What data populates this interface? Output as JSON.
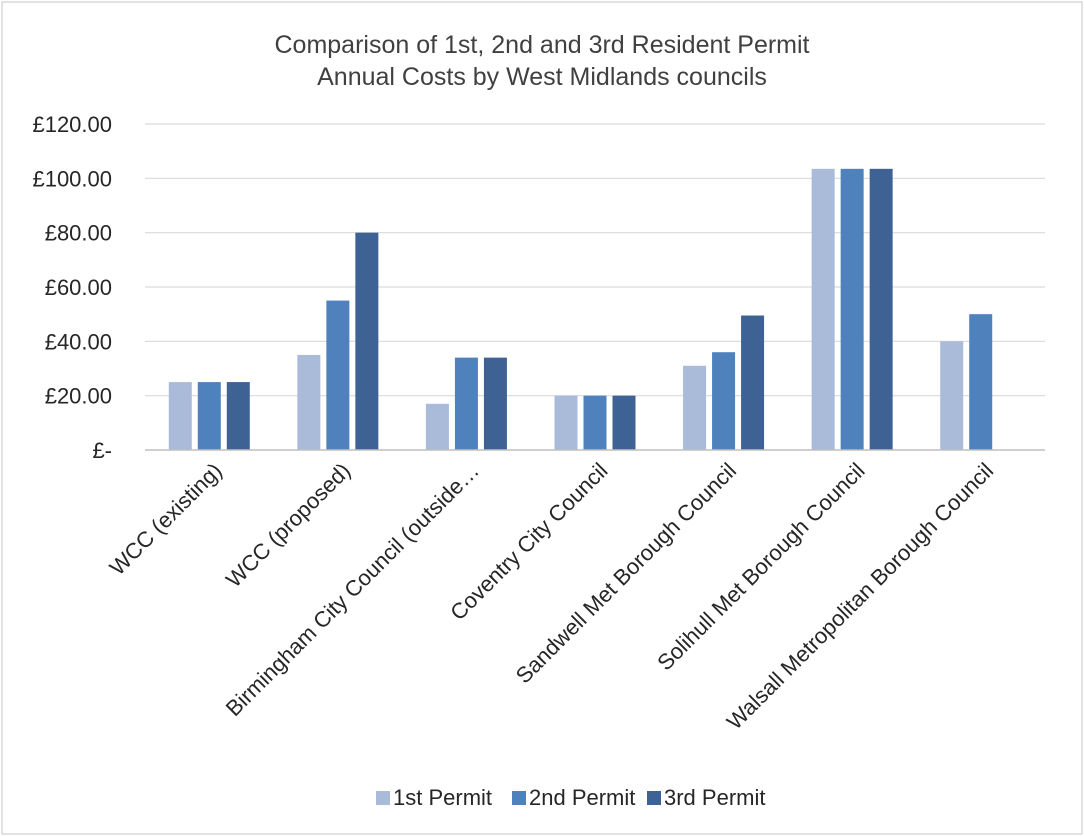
{
  "chart_data": {
    "type": "bar",
    "title": [
      "Comparison of 1st, 2nd and 3rd Resident Permit",
      "Annual Costs by West Midlands councils"
    ],
    "xlabel": "",
    "ylabel": "",
    "ylim": [
      0,
      120
    ],
    "ytick_values": [
      0,
      20,
      40,
      60,
      80,
      100,
      120
    ],
    "ytick_labels": [
      "£-",
      "£20.00",
      "£40.00",
      "£60.00",
      "£80.00",
      "£100.00",
      "£120.00"
    ],
    "grid": true,
    "legend_position": "bottom",
    "categories": [
      "WCC (existing)",
      "WCC (proposed)",
      "Birmingham City Council (outside…",
      "Coventry City Council",
      "Sandwell Met Borough Council",
      "Solihull Met Borough Council",
      "Walsall Metropolitan Borough Council"
    ],
    "series": [
      {
        "name": "1st Permit",
        "color": "#a9bbd9",
        "values": [
          25,
          35,
          17,
          20,
          31,
          103.5,
          40
        ]
      },
      {
        "name": "2nd Permit",
        "color": "#4f81bd",
        "values": [
          25,
          55,
          34,
          20,
          36,
          103.5,
          50
        ]
      },
      {
        "name": "3rd Permit",
        "color": "#3d6293",
        "values": [
          25,
          80,
          34,
          20,
          49.5,
          103.5,
          null
        ]
      }
    ]
  }
}
